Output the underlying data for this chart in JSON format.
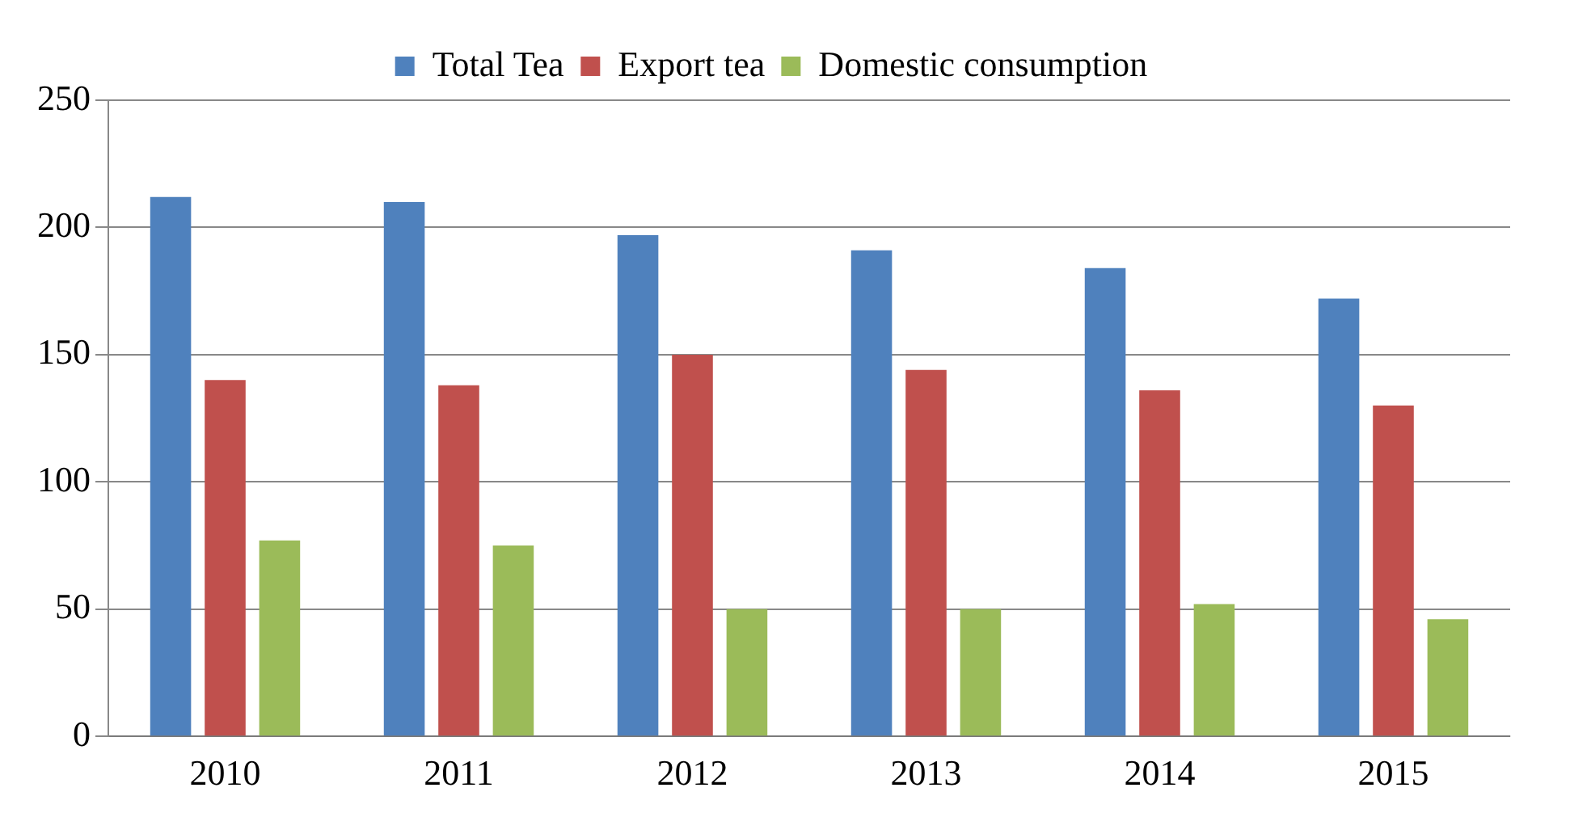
{
  "chart_data": {
    "type": "bar",
    "categories": [
      "2010",
      "2011",
      "2012",
      "2013",
      "2014",
      "2015"
    ],
    "series": [
      {
        "name": "Total Tea",
        "color": "#4f81bd",
        "values": [
          212,
          210,
          197,
          191,
          184,
          172
        ]
      },
      {
        "name": "Export tea",
        "color": "#c0504d",
        "values": [
          140,
          138,
          150,
          144,
          136,
          130
        ]
      },
      {
        "name": "Domestic consumption",
        "color": "#9bbb59",
        "values": [
          77,
          75,
          50,
          50,
          52,
          46
        ]
      }
    ],
    "ylim": [
      0,
      250
    ],
    "yticks": [
      0,
      50,
      100,
      150,
      200,
      250
    ],
    "grid": "y",
    "legend": "top"
  }
}
